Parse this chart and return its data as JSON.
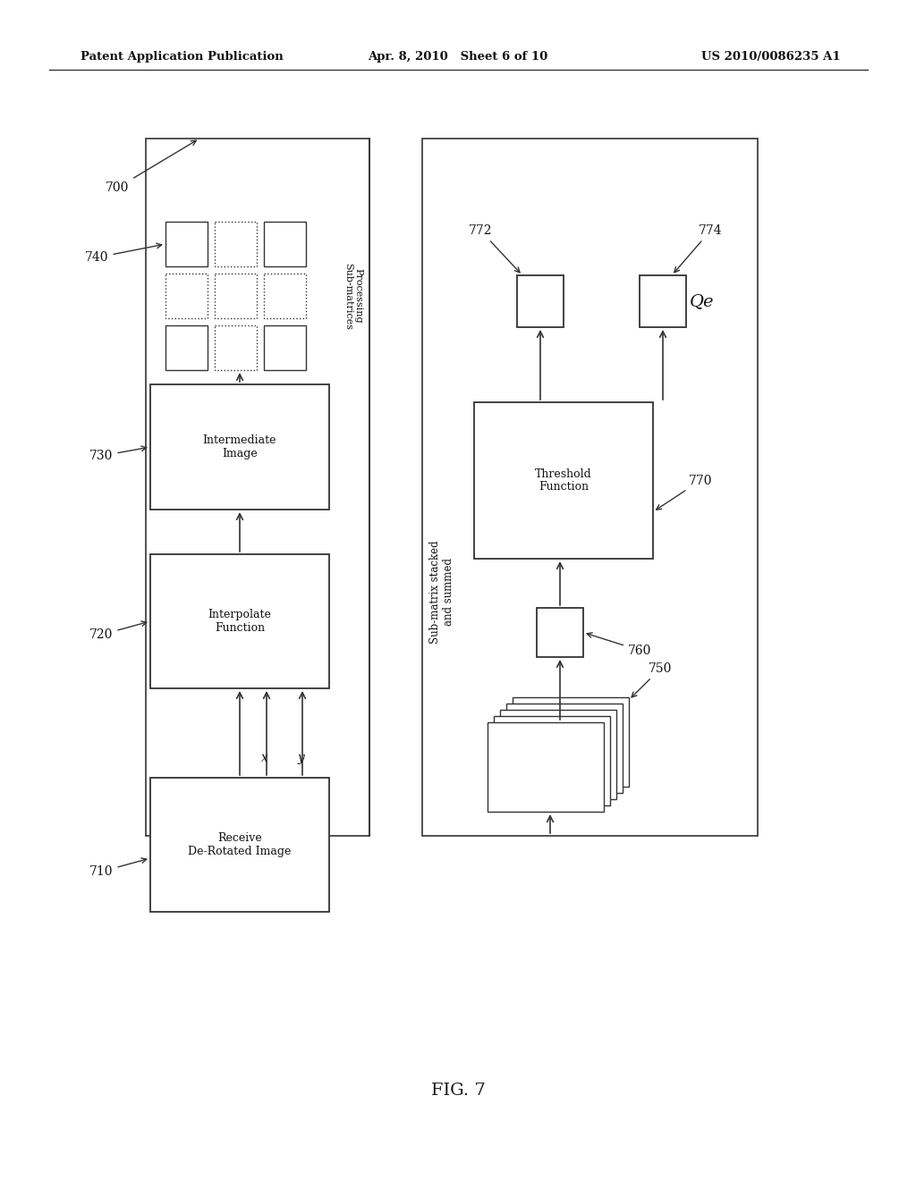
{
  "bg_color": "#ffffff",
  "header_left": "Patent Application Publication",
  "header_mid": "Apr. 8, 2010   Sheet 6 of 10",
  "header_right": "US 2010/0086235 A1",
  "fig_label": "FIG. 7",
  "line_color": "#333333",
  "text_color": "#111111"
}
